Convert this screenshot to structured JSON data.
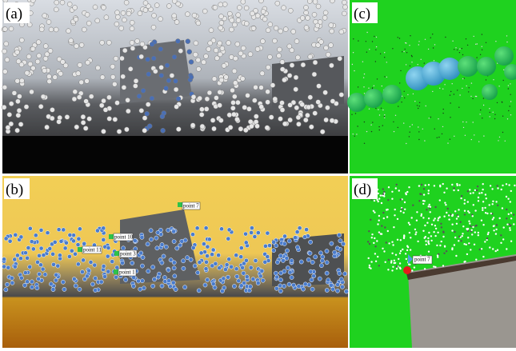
{
  "panels": [
    {
      "label": "(a)"
    },
    {
      "label": "(b)",
      "points": [
        "point 7",
        "point 10",
        "point 11",
        "point 3",
        "point 1"
      ]
    },
    {
      "label": "(c)"
    },
    {
      "label": "(d)",
      "points": [
        "point 7"
      ]
    }
  ]
}
